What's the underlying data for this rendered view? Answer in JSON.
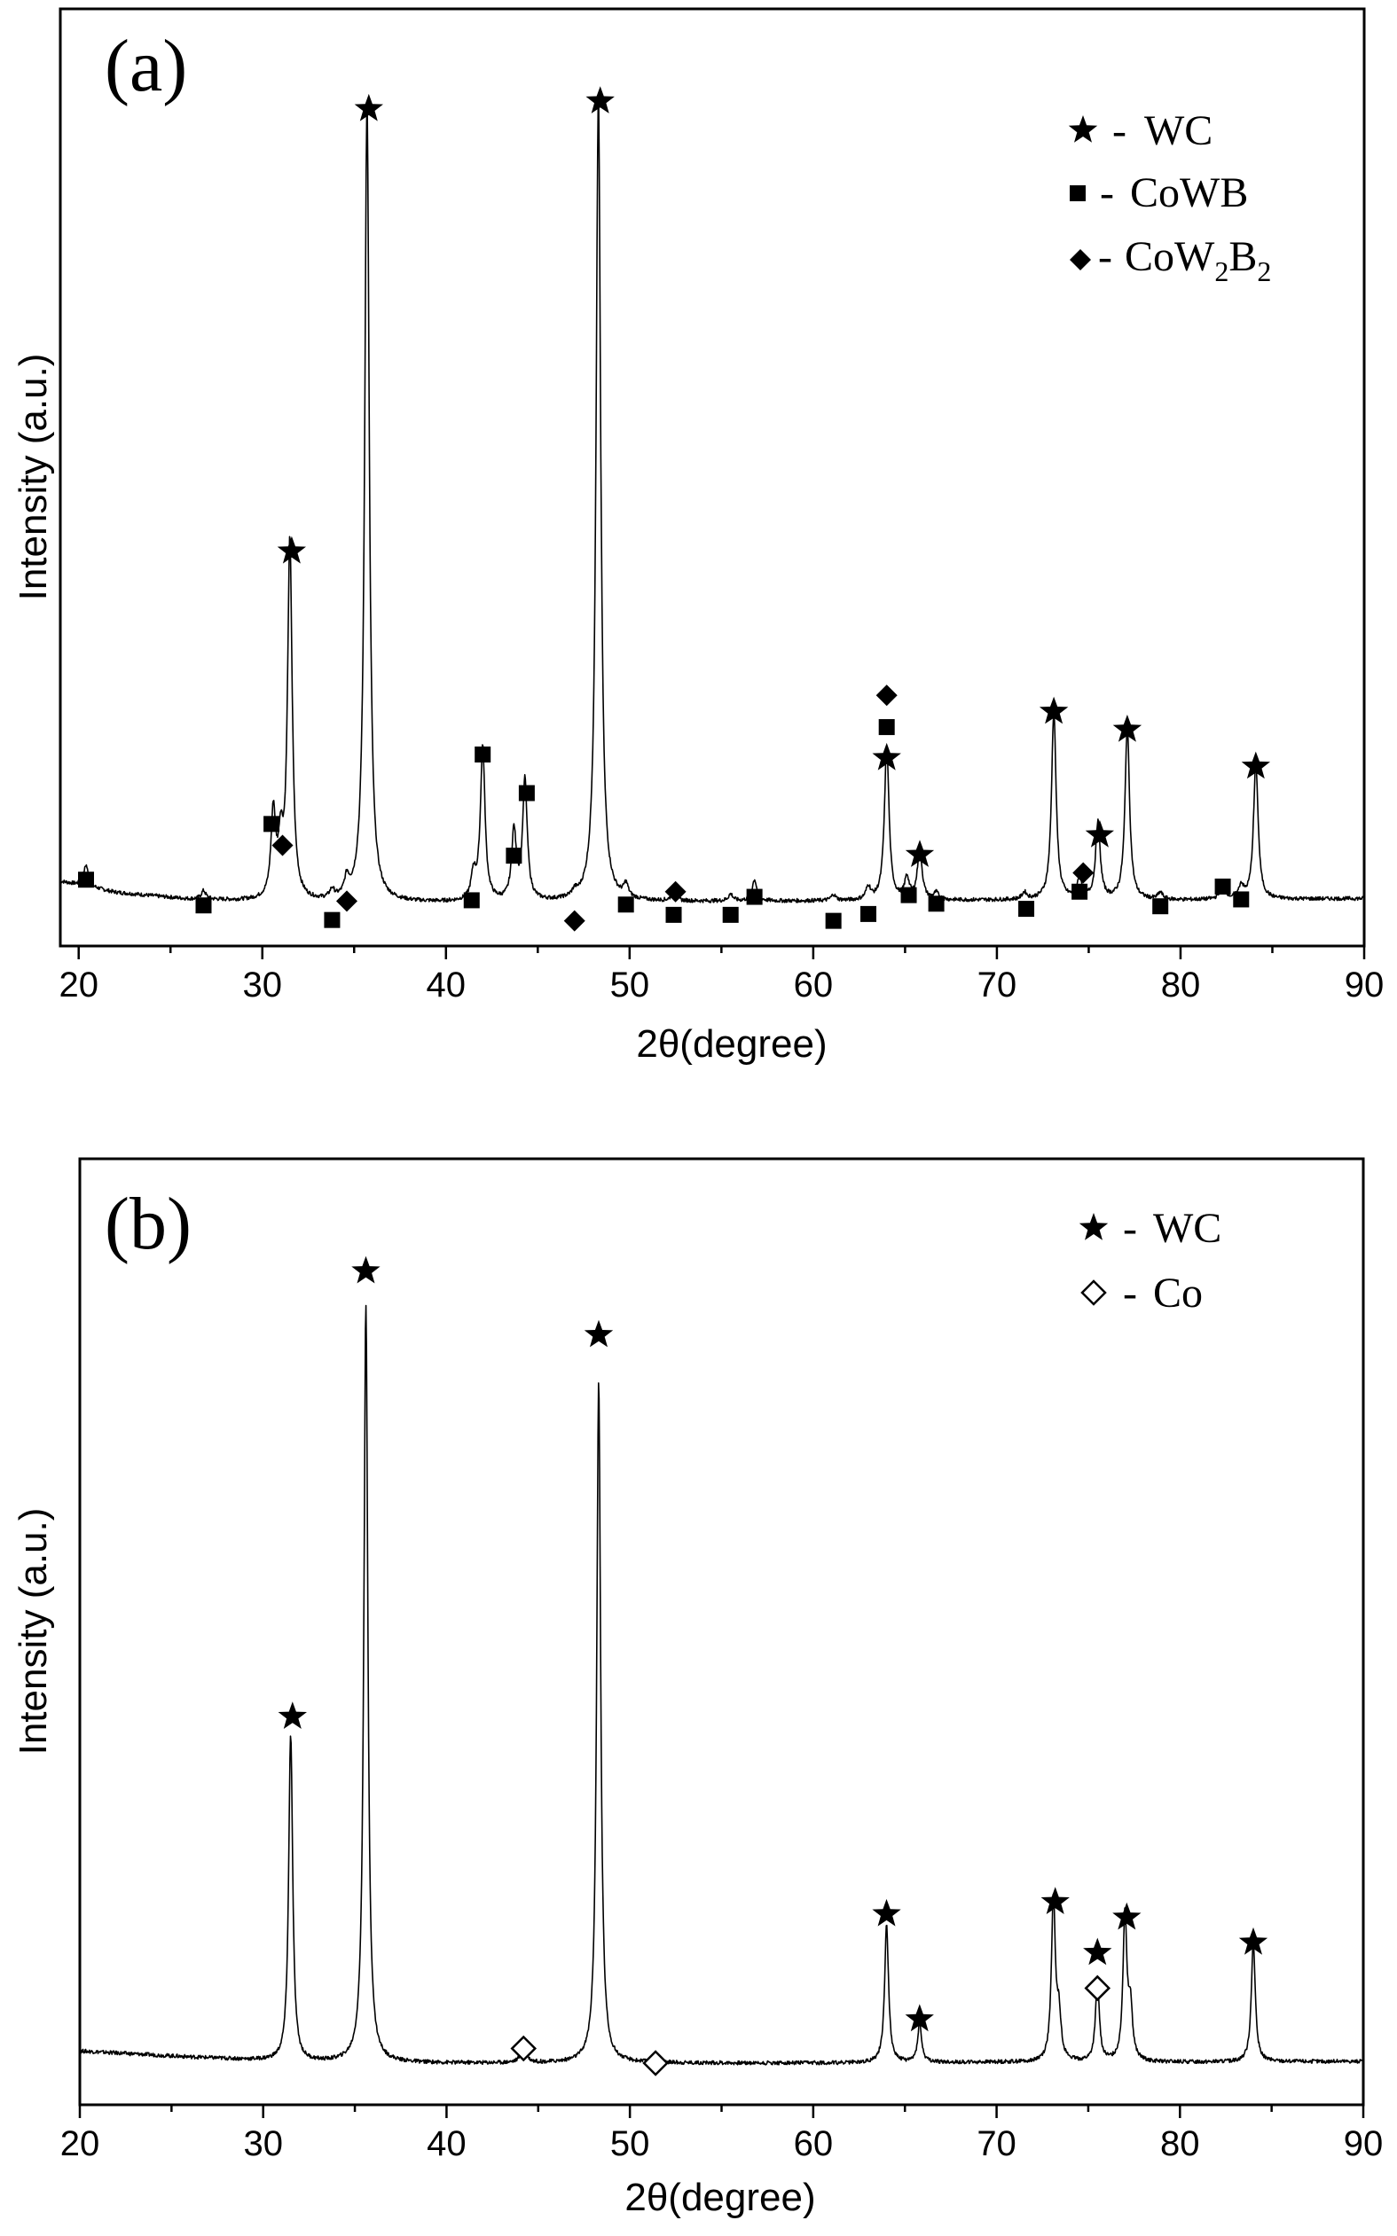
{
  "chart_data": [
    {
      "type": "line",
      "panel_label": "(a)",
      "xlabel": "2θ(degree)",
      "ylabel": "Intensity (a.u.)",
      "xlim": [
        19,
        90
      ],
      "ylim": [
        0,
        100
      ],
      "x_ticks": [
        20,
        30,
        40,
        50,
        60,
        70,
        80,
        90
      ],
      "y_ticks_shown": false,
      "legend_position": "top-right",
      "legend": [
        {
          "marker": "star",
          "dash": "-",
          "text": "WC"
        },
        {
          "marker": "square",
          "dash": "-",
          "text": "CoWB"
        },
        {
          "marker": "diamond",
          "dash": "-",
          "text": "CoW",
          "sub1": "2",
          "mid": "B",
          "sub2": "2"
        }
      ],
      "series": [
        {
          "baseline": [
            [
              19,
              6.5
            ],
            [
              22,
              5.2
            ],
            [
              26,
              4.4
            ],
            [
              32,
              4.0
            ],
            [
              40,
              4.0
            ],
            [
              50,
              4.1
            ],
            [
              60,
              4.2
            ],
            [
              70,
              4.3
            ],
            [
              80,
              4.3
            ],
            [
              90,
              4.5
            ]
          ],
          "peaks": [
            [
              20.4,
              2.5,
              0.15
            ],
            [
              26.8,
              1.0,
              0.15
            ],
            [
              30.6,
              10.0,
              0.15
            ],
            [
              31.0,
              6.0,
              0.15
            ],
            [
              31.5,
              42.0,
              0.15
            ],
            [
              33.8,
              1.0,
              0.15
            ],
            [
              34.6,
              2.0,
              0.15
            ],
            [
              35.7,
              93.0,
              0.15
            ],
            [
              41.5,
              3.0,
              0.15
            ],
            [
              42.0,
              18.0,
              0.15
            ],
            [
              43.7,
              8.0,
              0.15
            ],
            [
              44.3,
              14.0,
              0.15
            ],
            [
              47.0,
              0.6,
              0.15
            ],
            [
              48.3,
              94.0,
              0.15
            ],
            [
              49.8,
              1.5,
              0.15
            ],
            [
              52.4,
              1.0,
              0.15
            ],
            [
              55.5,
              0.8,
              0.15
            ],
            [
              56.8,
              2.5,
              0.15
            ],
            [
              61.1,
              0.7,
              0.15
            ],
            [
              63.0,
              1.5,
              0.15
            ],
            [
              64.0,
              18.0,
              0.15
            ],
            [
              65.1,
              2.5,
              0.15
            ],
            [
              65.8,
              6.0,
              0.15
            ],
            [
              66.7,
              0.8,
              0.15
            ],
            [
              71.5,
              0.8,
              0.15
            ],
            [
              73.1,
              22.0,
              0.15
            ],
            [
              74.5,
              2.5,
              0.15
            ],
            [
              75.5,
              9.0,
              0.15
            ],
            [
              77.1,
              20.0,
              0.15
            ],
            [
              78.9,
              0.8,
              0.15
            ],
            [
              82.3,
              2.0,
              0.15
            ],
            [
              83.3,
              1.5,
              0.15
            ],
            [
              84.1,
              16.0,
              0.15
            ]
          ]
        }
      ],
      "markers": [
        {
          "x": 20.4,
          "y": 6.7,
          "type": "square"
        },
        {
          "x": 26.8,
          "y": 3.7,
          "type": "square"
        },
        {
          "x": 30.5,
          "y": 13.2,
          "type": "square"
        },
        {
          "x": 31.1,
          "y": 10.7,
          "type": "diamond"
        },
        {
          "x": 31.6,
          "y": 45.0,
          "type": "star"
        },
        {
          "x": 33.8,
          "y": 2.0,
          "type": "square"
        },
        {
          "x": 34.6,
          "y": 4.2,
          "type": "diamond"
        },
        {
          "x": 35.8,
          "y": 96.6,
          "type": "star"
        },
        {
          "x": 41.4,
          "y": 4.3,
          "type": "square"
        },
        {
          "x": 42.0,
          "y": 21.3,
          "type": "square"
        },
        {
          "x": 43.7,
          "y": 9.5,
          "type": "square"
        },
        {
          "x": 44.4,
          "y": 16.8,
          "type": "square"
        },
        {
          "x": 47.0,
          "y": 1.9,
          "type": "diamond"
        },
        {
          "x": 48.4,
          "y": 97.5,
          "type": "star"
        },
        {
          "x": 49.8,
          "y": 3.8,
          "type": "square"
        },
        {
          "x": 52.4,
          "y": 2.6,
          "type": "square"
        },
        {
          "x": 52.5,
          "y": 5.3,
          "type": "diamond"
        },
        {
          "x": 55.5,
          "y": 2.6,
          "type": "square"
        },
        {
          "x": 56.8,
          "y": 4.7,
          "type": "square"
        },
        {
          "x": 61.1,
          "y": 1.9,
          "type": "square"
        },
        {
          "x": 63.0,
          "y": 2.7,
          "type": "square"
        },
        {
          "x": 64.0,
          "y": 20.9,
          "type": "star"
        },
        {
          "x": 64.0,
          "y": 24.5,
          "type": "square"
        },
        {
          "x": 64.0,
          "y": 28.2,
          "type": "diamond"
        },
        {
          "x": 65.2,
          "y": 4.9,
          "type": "square"
        },
        {
          "x": 65.8,
          "y": 9.6,
          "type": "star"
        },
        {
          "x": 66.7,
          "y": 3.9,
          "type": "square"
        },
        {
          "x": 71.6,
          "y": 3.3,
          "type": "square"
        },
        {
          "x": 73.1,
          "y": 26.3,
          "type": "star"
        },
        {
          "x": 74.5,
          "y": 5.3,
          "type": "square"
        },
        {
          "x": 74.7,
          "y": 7.5,
          "type": "diamond"
        },
        {
          "x": 75.6,
          "y": 11.9,
          "type": "star"
        },
        {
          "x": 77.1,
          "y": 24.2,
          "type": "star"
        },
        {
          "x": 78.9,
          "y": 3.6,
          "type": "square"
        },
        {
          "x": 82.3,
          "y": 5.9,
          "type": "square"
        },
        {
          "x": 83.3,
          "y": 4.4,
          "type": "square"
        },
        {
          "x": 84.1,
          "y": 19.9,
          "type": "star"
        }
      ]
    },
    {
      "type": "line",
      "panel_label": "(b)",
      "xlabel": "2θ(degree)",
      "ylabel": "Intensity (a.u.)",
      "xlim": [
        20,
        90
      ],
      "ylim": [
        0,
        100
      ],
      "x_ticks": [
        20,
        30,
        40,
        50,
        60,
        70,
        80,
        90
      ],
      "y_ticks_shown": false,
      "legend_position": "top-right",
      "legend": [
        {
          "marker": "star",
          "dash": "-",
          "text": "WC"
        },
        {
          "marker": "open-diamond",
          "dash": "-",
          "text": "Co"
        }
      ],
      "series": [
        {
          "baseline": [
            [
              20,
              5.0
            ],
            [
              26,
              4.3
            ],
            [
              32,
              3.7
            ],
            [
              40,
              3.6
            ],
            [
              50,
              3.6
            ],
            [
              60,
              3.6
            ],
            [
              70,
              3.7
            ],
            [
              80,
              3.7
            ],
            [
              90,
              3.8
            ]
          ],
          "peaks": [
            [
              31.5,
              38.0,
              0.13
            ],
            [
              35.6,
              88.0,
              0.13
            ],
            [
              44.2,
              2.5,
              0.15
            ],
            [
              48.3,
              79.0,
              0.13
            ],
            [
              51.5,
              0.8,
              0.15
            ],
            [
              64.0,
              16.0,
              0.13
            ],
            [
              65.8,
              4.5,
              0.13
            ],
            [
              73.1,
              19.0,
              0.13
            ],
            [
              73.4,
              5.0,
              0.13
            ],
            [
              75.5,
              9.0,
              0.13
            ],
            [
              77.0,
              17.0,
              0.13
            ],
            [
              77.3,
              6.0,
              0.13
            ],
            [
              84.0,
              14.0,
              0.13
            ]
          ]
        }
      ],
      "markers": [
        {
          "x": 31.6,
          "y": 43.8,
          "type": "star"
        },
        {
          "x": 35.6,
          "y": 95.5,
          "type": "star"
        },
        {
          "x": 44.2,
          "y": 5.3,
          "type": "open-diamond"
        },
        {
          "x": 48.3,
          "y": 88.1,
          "type": "star"
        },
        {
          "x": 51.4,
          "y": 3.6,
          "type": "open-diamond"
        },
        {
          "x": 64.0,
          "y": 20.9,
          "type": "star"
        },
        {
          "x": 65.8,
          "y": 8.7,
          "type": "star"
        },
        {
          "x": 73.2,
          "y": 22.3,
          "type": "star"
        },
        {
          "x": 75.5,
          "y": 16.4,
          "type": "star"
        },
        {
          "x": 75.5,
          "y": 12.3,
          "type": "open-diamond"
        },
        {
          "x": 77.1,
          "y": 20.5,
          "type": "star"
        },
        {
          "x": 84.0,
          "y": 17.6,
          "type": "star"
        }
      ]
    }
  ]
}
